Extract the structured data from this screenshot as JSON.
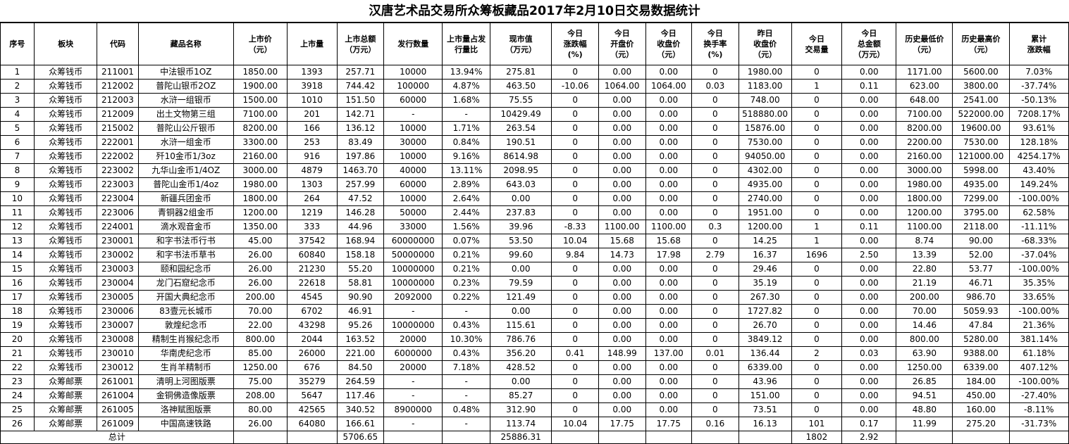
{
  "title": "汉唐艺术品交易所众筹板藏品2017年2月10日交易数据统计",
  "headers": [
    [
      "序号"
    ],
    [
      "板块"
    ],
    [
      "代码"
    ],
    [
      "藏品名称"
    ],
    [
      "上市价",
      "（元）"
    ],
    [
      "上市量"
    ],
    [
      "上市总额",
      "（万元）"
    ],
    [
      "发行数量"
    ],
    [
      "上市量占发",
      "行量比"
    ],
    [
      "现市值",
      "（万元）"
    ],
    [
      "今日",
      "涨跌幅",
      "(%)"
    ],
    [
      "今日",
      "开盘价",
      "（元）"
    ],
    [
      "今日",
      "收盘价",
      "（元）"
    ],
    [
      "今日",
      "换手率",
      "(%)"
    ],
    [
      "昨日",
      "收盘价",
      "（元）"
    ],
    [
      "今日",
      "交易量"
    ],
    [
      "今日",
      "总金额",
      "（万元）"
    ],
    [
      "历史最低价",
      "（元）"
    ],
    [
      "历史最高价",
      "（元）"
    ],
    [
      "累计",
      "涨跌幅"
    ]
  ],
  "rows": [
    [
      "1",
      "众筹钱币",
      "211001",
      "中法银币1OZ",
      "1850.00",
      "1393",
      "257.71",
      "10000",
      "13.94%",
      "275.81",
      "0",
      "0.00",
      "0.00",
      "0",
      "1980.00",
      "0",
      "0.00",
      "1171.00",
      "5600.00",
      "7.03%"
    ],
    [
      "2",
      "众筹钱币",
      "212002",
      "普陀山银币2OZ",
      "1900.00",
      "3918",
      "744.42",
      "100000",
      "4.87%",
      "463.50",
      "-10.06",
      "1064.00",
      "1064.00",
      "0.03",
      "1183.00",
      "1",
      "0.11",
      "623.00",
      "3800.00",
      "-37.74%"
    ],
    [
      "3",
      "众筹钱币",
      "212003",
      "水浒一组银币",
      "1500.00",
      "1010",
      "151.50",
      "60000",
      "1.68%",
      "75.55",
      "0",
      "0.00",
      "0.00",
      "0",
      "748.00",
      "0",
      "0.00",
      "648.00",
      "2541.00",
      "-50.13%"
    ],
    [
      "4",
      "众筹钱币",
      "212009",
      "出土文物第三组",
      "7100.00",
      "201",
      "142.71",
      "-",
      "-",
      "10429.49",
      "0",
      "0.00",
      "0.00",
      "0",
      "518880.00",
      "0",
      "0.00",
      "7100.00",
      "522000.00",
      "7208.17%"
    ],
    [
      "5",
      "众筹钱币",
      "215002",
      "普陀山公斤银币",
      "8200.00",
      "166",
      "136.12",
      "10000",
      "1.71%",
      "263.54",
      "0",
      "0.00",
      "0.00",
      "0",
      "15876.00",
      "0",
      "0.00",
      "8200.00",
      "19600.00",
      "93.61%"
    ],
    [
      "6",
      "众筹钱币",
      "222001",
      "水浒一组金币",
      "3300.00",
      "253",
      "83.49",
      "30000",
      "0.84%",
      "190.51",
      "0",
      "0.00",
      "0.00",
      "0",
      "7530.00",
      "0",
      "0.00",
      "2200.00",
      "7530.00",
      "128.18%"
    ],
    [
      "7",
      "众筹钱币",
      "222002",
      "歼10金币1/3oz",
      "2160.00",
      "916",
      "197.86",
      "10000",
      "9.16%",
      "8614.98",
      "0",
      "0.00",
      "0.00",
      "0",
      "94050.00",
      "0",
      "0.00",
      "2160.00",
      "121000.00",
      "4254.17%"
    ],
    [
      "8",
      "众筹钱币",
      "223002",
      "九华山金币1/4OZ",
      "3000.00",
      "4879",
      "1463.70",
      "40000",
      "13.11%",
      "2098.95",
      "0",
      "0.00",
      "0.00",
      "0",
      "4302.00",
      "0",
      "0.00",
      "3000.00",
      "5998.00",
      "43.40%"
    ],
    [
      "9",
      "众筹钱币",
      "223003",
      "普陀山金币1/4oz",
      "1980.00",
      "1303",
      "257.99",
      "60000",
      "2.89%",
      "643.03",
      "0",
      "0.00",
      "0.00",
      "0",
      "4935.00",
      "0",
      "0.00",
      "1980.00",
      "4935.00",
      "149.24%"
    ],
    [
      "10",
      "众筹钱币",
      "223004",
      "新疆兵团金币",
      "1800.00",
      "264",
      "47.52",
      "10000",
      "2.64%",
      "0.00",
      "0",
      "0.00",
      "0.00",
      "0",
      "2740.00",
      "0",
      "0.00",
      "1800.00",
      "7299.00",
      "-100.00%"
    ],
    [
      "11",
      "众筹钱币",
      "223006",
      "青铜器2组金币",
      "1200.00",
      "1219",
      "146.28",
      "50000",
      "2.44%",
      "237.83",
      "0",
      "0.00",
      "0.00",
      "0",
      "1951.00",
      "0",
      "0.00",
      "1200.00",
      "3795.00",
      "62.58%"
    ],
    [
      "12",
      "众筹钱币",
      "224001",
      "滴水观音金币",
      "1350.00",
      "333",
      "44.96",
      "33000",
      "1.56%",
      "39.96",
      "-8.33",
      "1100.00",
      "1100.00",
      "0.3",
      "1200.00",
      "1",
      "0.11",
      "1100.00",
      "2118.00",
      "-11.11%"
    ],
    [
      "13",
      "众筹钱币",
      "230001",
      "和字书法币行书",
      "45.00",
      "37542",
      "168.94",
      "60000000",
      "0.07%",
      "53.50",
      "10.04",
      "15.68",
      "15.68",
      "0",
      "14.25",
      "1",
      "0.00",
      "8.74",
      "90.00",
      "-68.33%"
    ],
    [
      "14",
      "众筹钱币",
      "230002",
      "和字书法币草书",
      "26.00",
      "60840",
      "158.18",
      "50000000",
      "0.21%",
      "99.60",
      "9.84",
      "14.73",
      "17.98",
      "2.79",
      "16.37",
      "1696",
      "2.50",
      "13.39",
      "52.00",
      "-37.04%"
    ],
    [
      "15",
      "众筹钱币",
      "230003",
      "颐和园纪念币",
      "26.00",
      "21230",
      "55.20",
      "10000000",
      "0.21%",
      "0.00",
      "0",
      "0.00",
      "0.00",
      "0",
      "29.46",
      "0",
      "0.00",
      "22.80",
      "53.77",
      "-100.00%"
    ],
    [
      "16",
      "众筹钱币",
      "230004",
      "龙门石窟纪念币",
      "26.00",
      "22618",
      "58.81",
      "10000000",
      "0.23%",
      "79.59",
      "0",
      "0.00",
      "0.00",
      "0",
      "35.19",
      "0",
      "0.00",
      "21.19",
      "46.71",
      "35.35%"
    ],
    [
      "17",
      "众筹钱币",
      "230005",
      "开国大典纪念币",
      "200.00",
      "4545",
      "90.90",
      "2092000",
      "0.22%",
      "121.49",
      "0",
      "0.00",
      "0.00",
      "0",
      "267.30",
      "0",
      "0.00",
      "200.00",
      "986.70",
      "33.65%"
    ],
    [
      "18",
      "众筹钱币",
      "230006",
      "83壹元长城币",
      "70.00",
      "6702",
      "46.91",
      "-",
      "-",
      "0.00",
      "0",
      "0.00",
      "0.00",
      "0",
      "1727.82",
      "0",
      "0.00",
      "70.00",
      "5059.93",
      "-100.00%"
    ],
    [
      "19",
      "众筹钱币",
      "230007",
      "敦煌纪念币",
      "22.00",
      "43298",
      "95.26",
      "10000000",
      "0.43%",
      "115.61",
      "0",
      "0.00",
      "0.00",
      "0",
      "26.70",
      "0",
      "0.00",
      "14.46",
      "47.84",
      "21.36%"
    ],
    [
      "20",
      "众筹钱币",
      "230008",
      "精制生肖猴纪念币",
      "800.00",
      "2044",
      "163.52",
      "20000",
      "10.30%",
      "786.76",
      "0",
      "0.00",
      "0.00",
      "0",
      "3849.12",
      "0",
      "0.00",
      "800.00",
      "5280.00",
      "381.14%"
    ],
    [
      "21",
      "众筹钱币",
      "230010",
      "华南虎纪念币",
      "85.00",
      "26000",
      "221.00",
      "6000000",
      "0.43%",
      "356.20",
      "0.41",
      "148.99",
      "137.00",
      "0.01",
      "136.44",
      "2",
      "0.03",
      "63.90",
      "9388.00",
      "61.18%"
    ],
    [
      "22",
      "众筹钱币",
      "230012",
      "生肖羊精制币",
      "1250.00",
      "676",
      "84.50",
      "20000",
      "7.18%",
      "428.52",
      "0",
      "0.00",
      "0.00",
      "0",
      "6339.00",
      "0",
      "0.00",
      "1250.00",
      "6339.00",
      "407.12%"
    ],
    [
      "23",
      "众筹邮票",
      "261001",
      "清明上河图版票",
      "75.00",
      "35279",
      "264.59",
      "-",
      "-",
      "0.00",
      "0",
      "0.00",
      "0.00",
      "0",
      "43.96",
      "0",
      "0.00",
      "26.85",
      "184.00",
      "-100.00%"
    ],
    [
      "24",
      "众筹邮票",
      "261004",
      "金铜佛造像版票",
      "208.00",
      "5647",
      "117.46",
      "-",
      "-",
      "85.27",
      "0",
      "0.00",
      "0.00",
      "0",
      "151.00",
      "0",
      "0.00",
      "94.51",
      "450.00",
      "-27.40%"
    ],
    [
      "25",
      "众筹邮票",
      "261005",
      "洛神赋图版票",
      "80.00",
      "42565",
      "340.52",
      "8900000",
      "0.48%",
      "312.90",
      "0",
      "0.00",
      "0.00",
      "0",
      "73.51",
      "0",
      "0.00",
      "48.80",
      "160.00",
      "-8.11%"
    ],
    [
      "26",
      "众筹邮票",
      "261009",
      "中国高速铁路",
      "26.00",
      "64080",
      "166.61",
      "-",
      "-",
      "113.74",
      "10.04",
      "17.75",
      "17.75",
      "0.16",
      "16.13",
      "101",
      "0.17",
      "11.99",
      "275.20",
      "-31.73%"
    ]
  ],
  "footer": {
    "label": "总计",
    "total_market_amount": "5706.65",
    "total_current_value": "25886.31",
    "total_volume": "1802",
    "total_amount": "2.92"
  }
}
